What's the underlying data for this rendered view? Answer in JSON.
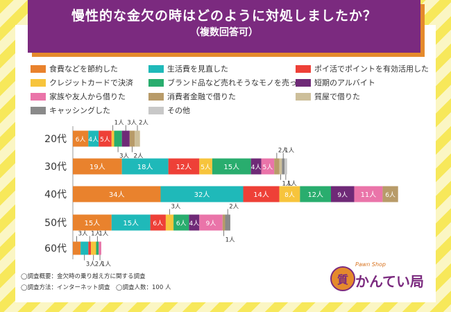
{
  "chart_data": {
    "type": "bar",
    "orientation": "horizontal",
    "stacked": true,
    "title": "慢性的な金欠の時はどのように対処しましたか？",
    "subtitle": "（複数回答可）",
    "unit": "人",
    "categories": [
      "20代",
      "30代",
      "40代",
      "50代",
      "60代"
    ],
    "series": [
      {
        "name": "食費などを節約した",
        "color": "#e9822d",
        "values": [
          6,
          19,
          34,
          15,
          3
        ]
      },
      {
        "name": "生活費を見直した",
        "color": "#1fb9b9",
        "values": [
          4,
          18,
          32,
          15,
          3
        ]
      },
      {
        "name": "ポイ活でポイントを有効活用した",
        "color": "#ee4037",
        "values": [
          5,
          12,
          14,
          6,
          1
        ]
      },
      {
        "name": "クレジットカードで決済",
        "color": "#f7c43c",
        "values": [
          1,
          5,
          8,
          3,
          2
        ]
      },
      {
        "name": "ブランド品など売れそうなモノを売った",
        "color": "#29ad6e",
        "values": [
          3,
          15,
          12,
          6,
          1
        ]
      },
      {
        "name": "短期のアルバイト",
        "color": "#6f2a77",
        "values": [
          3,
          4,
          9,
          4,
          0
        ]
      },
      {
        "name": "家族や友人から借りた",
        "color": "#ea74a9",
        "values": [
          0,
          5,
          11,
          9,
          1
        ]
      },
      {
        "name": "消費者金融で借りた",
        "color": "#b89b69",
        "values": [
          2,
          2,
          6,
          1,
          0
        ]
      },
      {
        "name": "質屋で借りた",
        "color": "#cdbf9a",
        "values": [
          2,
          1,
          0,
          0,
          0
        ]
      },
      {
        "name": "キャッシングした",
        "color": "#8a8a8a",
        "values": [
          0,
          1,
          0,
          2,
          0
        ]
      },
      {
        "name": "その他",
        "color": "#c8c8c8",
        "values": [
          0,
          1,
          0,
          0,
          0
        ]
      }
    ]
  },
  "notes": {
    "line1": "◯調査概要：金欠時の乗り越え方に関する調査",
    "line2": "◯調査方法：インターネット調査　◯調査人数：100 人"
  },
  "brand": {
    "logo_char": "質",
    "tagline": "Pawn Shop",
    "name": "かんてい局"
  }
}
